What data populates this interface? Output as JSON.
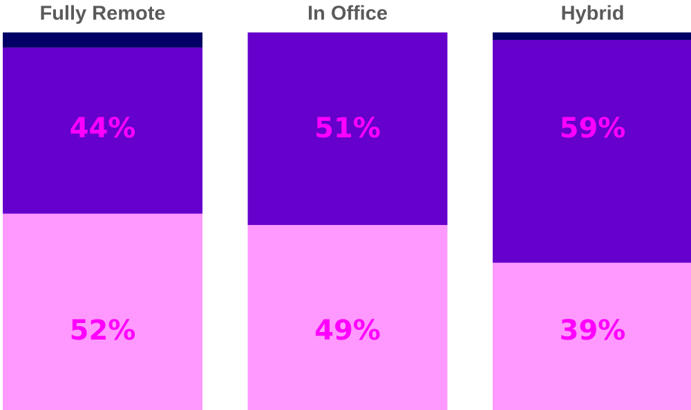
{
  "chart_data": {
    "type": "stacked_bar",
    "categories": [
      "Fully Remote",
      "In Office",
      "Hybrid"
    ],
    "series": [
      {
        "color": "#ff99ff",
        "values": [
          52,
          49,
          39
        ],
        "value_labels": [
          "52%",
          "49%",
          "39%"
        ]
      },
      {
        "color": "#6600cc",
        "values": [
          44,
          51,
          59
        ],
        "value_labels": [
          "44%",
          "51%",
          "59%"
        ]
      },
      {
        "color": "#000066",
        "values": [
          4,
          0,
          2
        ]
      }
    ],
    "ylim": [
      0,
      100
    ]
  }
}
